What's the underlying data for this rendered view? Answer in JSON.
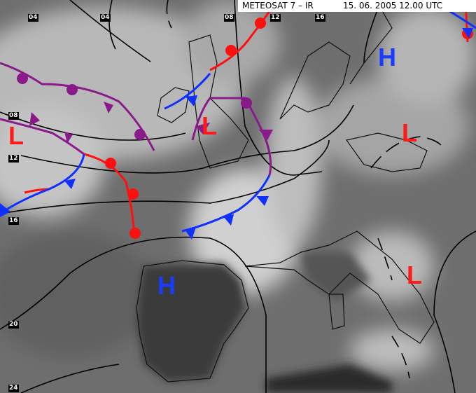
{
  "header": {
    "satellite": "METEOSAT 7 – IR",
    "datetime": "15. 06. 2005 12.00 UTC"
  },
  "isobar_labels": [
    "04",
    "04",
    "08",
    "12",
    "16",
    "08",
    "12",
    "16",
    "20",
    "24"
  ],
  "pressure_centers": [
    {
      "type": "L",
      "color": "#ff1a1a"
    },
    {
      "type": "L",
      "color": "#ff1a1a"
    },
    {
      "type": "L",
      "color": "#ff1a1a"
    },
    {
      "type": "L",
      "color": "#ff1a1a"
    },
    {
      "type": "H",
      "color": "#1a3cff"
    },
    {
      "type": "H",
      "color": "#1a3cff"
    }
  ],
  "colors": {
    "warm_front": "#ff1010",
    "cold_front": "#1030ff",
    "occluded_front": "#8a1a8a",
    "isobar": "#000000"
  }
}
